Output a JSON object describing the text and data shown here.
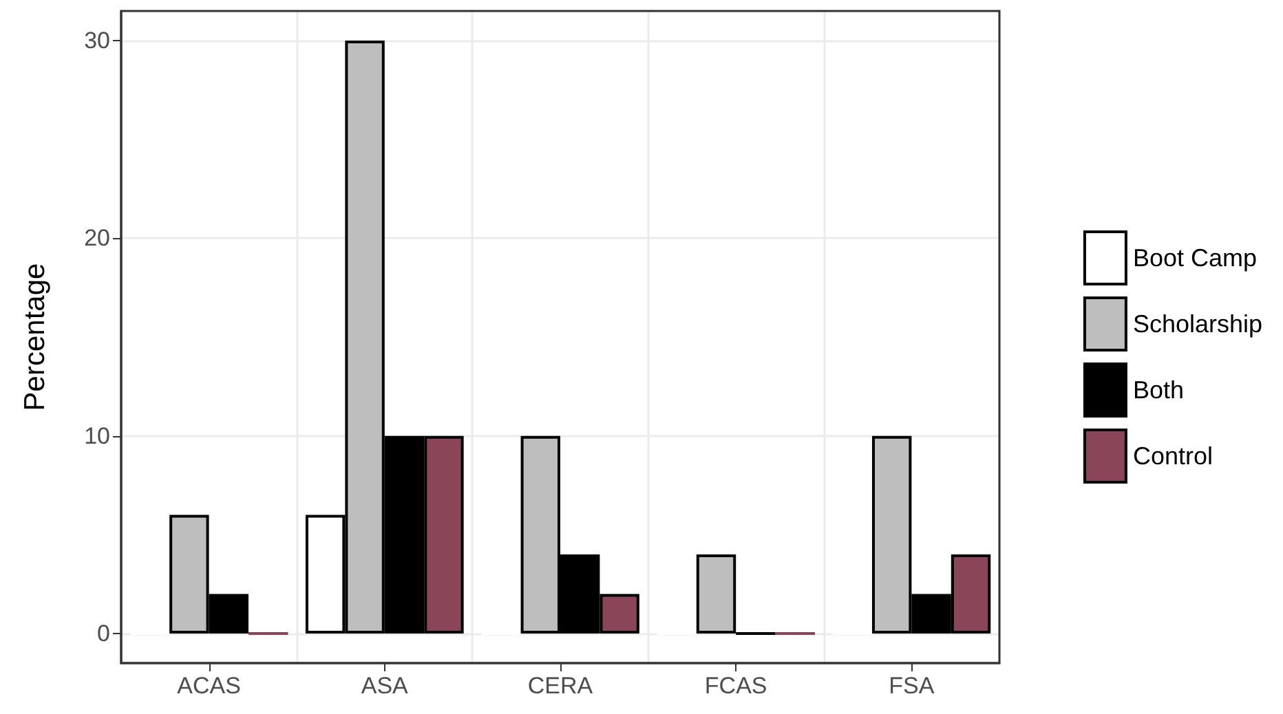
{
  "chart_data": {
    "type": "bar",
    "ylabel": "Percentage",
    "categories": [
      "ACAS",
      "ASA",
      "CERA",
      "FCAS",
      "FSA"
    ],
    "series": [
      {
        "name": "Boot Camp",
        "color": "#ffffff",
        "values": [
          0,
          6,
          0,
          0,
          0
        ]
      },
      {
        "name": "Scholarship",
        "color": "#bebebe",
        "values": [
          6,
          30,
          10,
          4,
          10
        ]
      },
      {
        "name": "Both",
        "color": "#000000",
        "values": [
          2,
          10,
          4,
          0,
          2
        ]
      },
      {
        "name": "Control",
        "color": "#8b4558",
        "values": [
          0,
          10,
          2,
          0,
          4
        ]
      }
    ],
    "ylim": [
      -1.5,
      31.5
    ],
    "yticks": [
      0,
      10,
      20,
      30
    ],
    "grid": true,
    "legend": "right"
  }
}
